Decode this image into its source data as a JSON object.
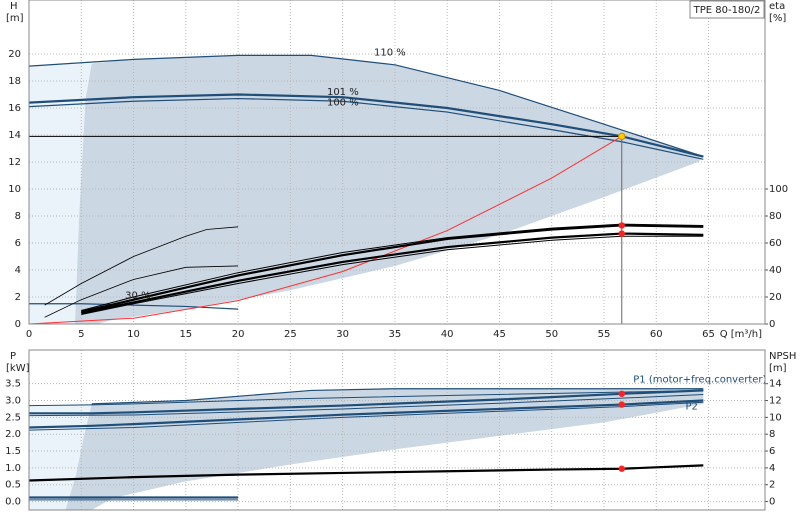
{
  "chart_data": [
    {
      "type": "line",
      "title": "TPE 80-180/2",
      "y_label": "H",
      "y_unit": "[m]",
      "y2_label": "eta",
      "y2_unit": "[%]",
      "x_label": "Q [m³/h]",
      "xlim": [
        0,
        70.4
      ],
      "xticks": [
        0,
        5,
        10,
        15,
        20,
        25,
        30,
        35,
        40,
        45,
        50,
        55,
        60,
        65
      ],
      "ylim": [
        0,
        24
      ],
      "yticks": [
        0,
        2,
        4,
        6,
        8,
        10,
        12,
        14,
        16,
        18,
        20
      ],
      "y2lim": [
        0,
        240
      ],
      "y2ticks": [
        0,
        20,
        40,
        60,
        80,
        100
      ],
      "grid": true,
      "areas": [
        {
          "color": "#eaf2fa",
          "x": [
            0,
            0,
            6,
            5.4,
            4.8,
            4.4
          ],
          "values": [
            0,
            19.1,
            19.3,
            16.6,
            8,
            0
          ]
        },
        {
          "color": "#cbd7e3",
          "x": [
            6,
            10,
            20,
            27,
            35,
            45,
            55,
            64.5,
            64,
            55,
            45,
            35,
            25,
            15,
            8,
            6.5,
            4.4,
            4.8,
            5.4
          ],
          "values": [
            19.3,
            19.6,
            19.9,
            19.9,
            19.2,
            17.3,
            14.8,
            12.4,
            12.0,
            9.4,
            6.6,
            4.3,
            2.5,
            1.1,
            0.3,
            0,
            0,
            8,
            16.6
          ]
        }
      ],
      "series": [
        {
          "color": "#1f4e79",
          "width": 1.2,
          "x": [
            0,
            10,
            20,
            27,
            35,
            45,
            55,
            64.5
          ],
          "values": [
            19.1,
            19.6,
            19.9,
            19.9,
            19.2,
            17.3,
            14.8,
            12.4
          ]
        },
        {
          "color": "#1f4e79",
          "width": 2.2,
          "x": [
            0,
            10,
            20,
            30,
            40,
            50,
            56.7,
            64.5
          ],
          "values": [
            16.4,
            16.8,
            17.0,
            16.8,
            16.0,
            14.8,
            13.9,
            12.4
          ]
        },
        {
          "color": "#1f4e79",
          "width": 1.2,
          "x": [
            0,
            10,
            20,
            30,
            40,
            50,
            56.7,
            64.5
          ],
          "values": [
            16.1,
            16.5,
            16.7,
            16.5,
            15.7,
            14.4,
            13.5,
            12.2
          ]
        },
        {
          "color": "#1f4e79",
          "width": 1.2,
          "x": [
            0,
            5,
            10,
            15,
            20
          ],
          "values": [
            1.5,
            1.5,
            1.4,
            1.3,
            1.1
          ]
        },
        {
          "color": "#ff3030",
          "width": 1,
          "x": [
            0,
            10,
            20,
            30,
            40,
            50,
            56.7
          ],
          "values": [
            0,
            0.43,
            1.73,
            3.89,
            6.92,
            10.81,
            13.9
          ]
        },
        {
          "color": "#000000",
          "width": 1,
          "x": [
            0,
            56.7
          ],
          "values": [
            13.9,
            13.9
          ]
        },
        {
          "color": "#666666",
          "width": 1,
          "x": [
            56.7,
            56.7
          ],
          "values": [
            0,
            13.9
          ]
        },
        {
          "color": "#000000",
          "width": 2.2,
          "axis": "y2",
          "x": [
            5,
            10,
            20,
            30,
            40,
            50,
            56.7,
            64.5
          ],
          "values": [
            9,
            18,
            36,
            51,
            63,
            70,
            73,
            72
          ]
        },
        {
          "color": "#000000",
          "width": 1,
          "axis": "y2",
          "x": [
            5,
            10,
            20,
            30,
            40,
            50,
            56.7,
            64.5
          ],
          "values": [
            10,
            20,
            38,
            53,
            64,
            71,
            74,
            73
          ]
        },
        {
          "color": "#000000",
          "width": 2.2,
          "axis": "y2",
          "x": [
            5,
            10,
            20,
            30,
            40,
            50,
            56.7,
            64.5
          ],
          "values": [
            8,
            16,
            32,
            46,
            57,
            64,
            67,
            66
          ]
        },
        {
          "color": "#000000",
          "width": 1,
          "axis": "y2",
          "x": [
            5,
            10,
            20,
            30,
            40,
            50,
            56.7,
            64.5
          ],
          "values": [
            7,
            15,
            30,
            44,
            55,
            62,
            65,
            65
          ]
        },
        {
          "color": "#000000",
          "width": 0.8,
          "axis": "y2",
          "x": [
            1.5,
            5,
            10,
            15,
            17,
            20
          ],
          "values": [
            14,
            30,
            50,
            65,
            70,
            72
          ]
        },
        {
          "color": "#000000",
          "width": 0.8,
          "axis": "y2",
          "x": [
            1.5,
            5,
            10,
            15,
            20
          ],
          "values": [
            5,
            18,
            33,
            42,
            43
          ]
        }
      ],
      "points": [
        {
          "color": "#ffcc00",
          "x": 56.7,
          "y": 13.9
        },
        {
          "color": "#ff2020",
          "x": 56.7,
          "y": 73,
          "axis": "y2"
        },
        {
          "color": "#ff2020",
          "x": 56.7,
          "y": 67,
          "axis": "y2"
        }
      ],
      "annotations": [
        {
          "text": "110 %",
          "x": 33,
          "y": 20.1
        },
        {
          "text": "101 %",
          "x": 28.5,
          "y": 17.2
        },
        {
          "text": "100 %",
          "x": 28.5,
          "y": 16.4
        },
        {
          "text": "30 %",
          "x": 9.2,
          "y": 2.1
        }
      ]
    },
    {
      "type": "line",
      "y_label": "P",
      "y_unit": "[kW]",
      "y2_label": "NPSH",
      "y2_unit": "[m]",
      "xlim": [
        0,
        70.4
      ],
      "ylim": [
        -0.25,
        4.5
      ],
      "yticks": [
        {
          "value": 0,
          "label": "0.0"
        },
        0.5,
        {
          "value": 1,
          "label": "1.0"
        },
        1.5,
        {
          "value": 2,
          "label": "2.0"
        },
        2.5,
        {
          "value": 3,
          "label": "3.0"
        },
        3.5
      ],
      "y2lim": [
        -1,
        18
      ],
      "y2ticks": [
        0,
        2,
        4,
        6,
        8,
        10,
        12,
        14
      ],
      "grid": true,
      "areas": [
        {
          "color": "#eaf2fa",
          "x": [
            0,
            0,
            6,
            5.3,
            4.5,
            3.5
          ],
          "values": [
            -0.25,
            2.85,
            2.9,
            2.0,
            0.8,
            -0.25
          ]
        },
        {
          "color": "#cbd7e3",
          "x": [
            6,
            15,
            27,
            35,
            64.5,
            64.5,
            55,
            45,
            35,
            25,
            15,
            8,
            6,
            3.5,
            4.5,
            5.3
          ],
          "values": [
            2.9,
            3.0,
            3.3,
            3.35,
            3.35,
            2.9,
            2.35,
            1.95,
            1.55,
            1.1,
            0.6,
            0.1,
            -0.25,
            -0.25,
            0.8,
            2.0
          ]
        }
      ],
      "series": [
        {
          "color": "#1f4e79",
          "width": 1.2,
          "x": [
            6,
            15,
            27,
            35,
            45,
            56.7,
            64.5
          ],
          "values": [
            2.9,
            3.0,
            3.3,
            3.35,
            3.35,
            3.35,
            3.35
          ]
        },
        {
          "color": "#1f4e79",
          "width": 1,
          "x": [
            0,
            6,
            10,
            25,
            40,
            56.7,
            64.5
          ],
          "values": [
            2.85,
            2.87,
            2.9,
            3.05,
            3.15,
            3.25,
            3.3
          ]
        },
        {
          "color": "#1f4e79",
          "width": 2.2,
          "x": [
            0,
            6,
            10,
            30,
            45,
            56.7,
            64.5
          ],
          "values": [
            2.62,
            2.62,
            2.65,
            2.85,
            3.03,
            3.2,
            3.3
          ]
        },
        {
          "color": "#1f4e79",
          "width": 1,
          "x": [
            0,
            10,
            30,
            45,
            56.7,
            64.5
          ],
          "values": [
            2.55,
            2.57,
            2.75,
            2.92,
            3.07,
            3.18
          ]
        },
        {
          "color": "#1f4e79",
          "width": 2.2,
          "x": [
            0,
            6,
            10,
            30,
            45,
            56.7,
            64.5
          ],
          "values": [
            2.2,
            2.25,
            2.3,
            2.58,
            2.75,
            2.88,
            3.0
          ]
        },
        {
          "color": "#1f4e79",
          "width": 1,
          "x": [
            0,
            10,
            30,
            45,
            56.7,
            64.5
          ],
          "values": [
            2.12,
            2.2,
            2.5,
            2.68,
            2.82,
            2.95
          ]
        },
        {
          "color": "#1f4e79",
          "width": 2.2,
          "x": [
            0,
            20
          ],
          "values": [
            0.12,
            0.12
          ]
        },
        {
          "color": "#1f4e79",
          "width": 1,
          "x": [
            0,
            20
          ],
          "values": [
            0.05,
            0.05
          ]
        },
        {
          "color": "#000000",
          "width": 2.2,
          "axis": "y2",
          "x": [
            0,
            10,
            20,
            30,
            40,
            50,
            56.7,
            64.5
          ],
          "values": [
            2.5,
            2.9,
            3.2,
            3.4,
            3.6,
            3.8,
            3.9,
            4.3
          ]
        }
      ],
      "points": [
        {
          "color": "#ff2020",
          "x": 56.7,
          "y": 3.2
        },
        {
          "color": "#ff2020",
          "x": 56.7,
          "y": 2.88
        },
        {
          "color": "#ff2020",
          "x": 56.7,
          "y": 3.9,
          "axis": "y2"
        }
      ],
      "annotations": [
        {
          "text": "P1 (motor+freq.converter)",
          "x": 57.8,
          "y": 3.62
        },
        {
          "text": "P2",
          "x": 62.8,
          "y": 2.82
        }
      ]
    }
  ]
}
